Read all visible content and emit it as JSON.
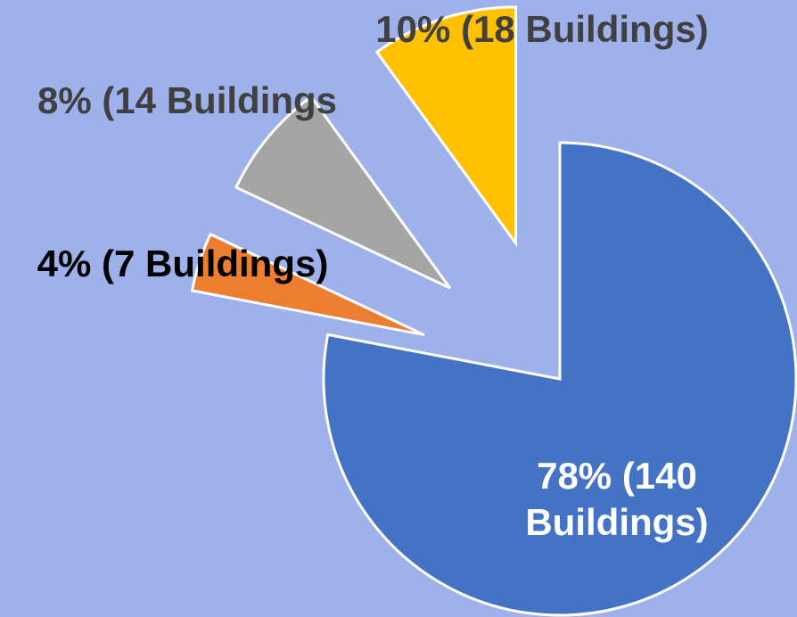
{
  "chart_data": {
    "type": "pie",
    "categories": [
      null,
      null,
      null,
      null
    ],
    "values": [
      78,
      4,
      8,
      10
    ],
    "value_labels": [
      "78% (140 Buildings)",
      "4% (7 Buildings)",
      "8% (14 Buildings",
      "10% (18 Buildings)"
    ],
    "colors": [
      "#4472c4",
      "#ed7d31",
      "#a5a5a5",
      "#ffc000"
    ],
    "exploded": [
      false,
      true,
      true,
      true
    ]
  }
}
